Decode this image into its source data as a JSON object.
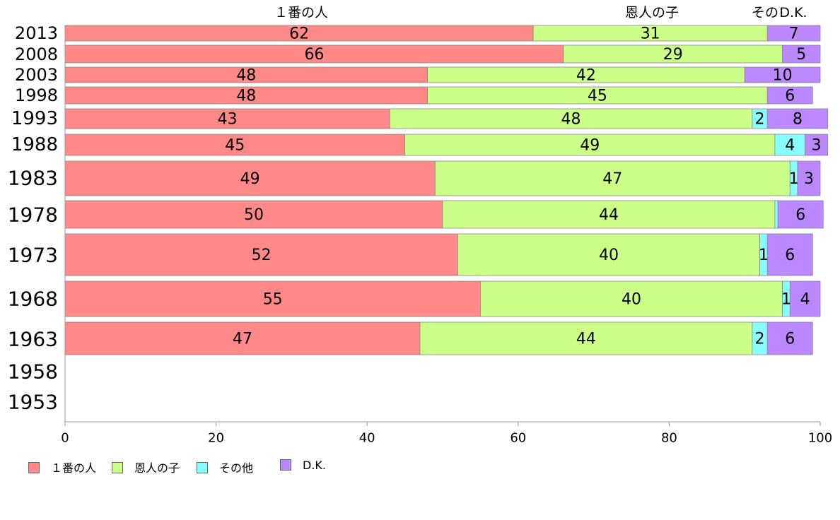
{
  "chart_data": {
    "type": "bar",
    "orientation": "horizontal",
    "stacked": true,
    "categories": [
      "2013",
      "2008",
      "2003",
      "1998",
      "1993",
      "1988",
      "1983",
      "1978",
      "1973",
      "1968",
      "1963",
      "1958",
      "1953"
    ],
    "series": [
      {
        "name": "１番の人",
        "color": "#ff8888",
        "values": [
          62,
          66,
          48,
          48,
          43,
          45,
          49,
          50,
          52,
          55,
          47,
          null,
          null
        ]
      },
      {
        "name": "恩人の子",
        "color": "#ccff88",
        "values": [
          31,
          29,
          42,
          45,
          48,
          49,
          47,
          44,
          40,
          40,
          44,
          null,
          null
        ]
      },
      {
        "name": "その他",
        "color": "#88ffff",
        "values": [
          0,
          0,
          0,
          0,
          2,
          4,
          1,
          0.4,
          1,
          1,
          2,
          null,
          null
        ]
      },
      {
        "name": "D.K.",
        "color": "#bb88ff",
        "values": [
          7,
          5,
          10,
          6,
          8,
          3,
          3,
          6,
          6,
          4,
          6,
          null,
          null
        ]
      }
    ],
    "xlim": [
      0,
      100
    ],
    "xticks": [
      "0",
      "20",
      "40",
      "60",
      "80",
      "100"
    ],
    "top_labels": [
      "１番の人",
      "恩人の子",
      "その",
      "D.K."
    ],
    "legend_position": "bottom-left",
    "grid": false
  }
}
